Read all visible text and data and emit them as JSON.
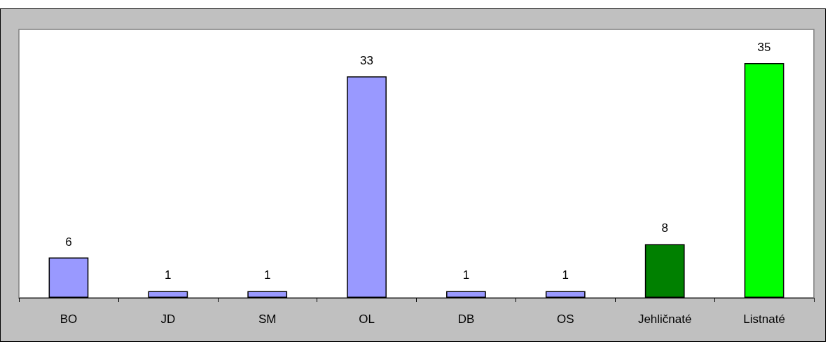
{
  "chart_data": {
    "type": "bar",
    "categories": [
      "BO",
      "JD",
      "SM",
      "OL",
      "DB",
      "OS",
      "Jehličnaté",
      "Listnaté"
    ],
    "values": [
      6,
      1,
      1,
      33,
      1,
      1,
      8,
      35
    ],
    "colors": [
      "#9999ff",
      "#9999ff",
      "#9999ff",
      "#9999ff",
      "#9999ff",
      "#9999ff",
      "#008000",
      "#00ff00"
    ],
    "data_labels": true,
    "tick_labels": "x"
  }
}
